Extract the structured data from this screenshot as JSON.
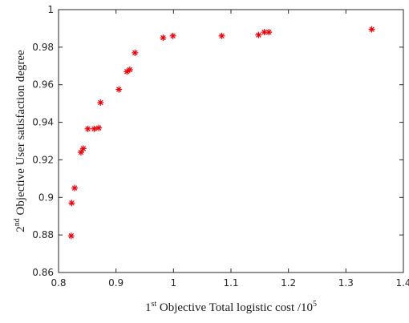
{
  "chart_data": {
    "type": "scatter",
    "marker": "asterisk",
    "marker_color": "#e8000b",
    "xlim": [
      0.8,
      1.4
    ],
    "ylim": [
      0.86,
      1.0
    ],
    "grid": false,
    "legend": false,
    "x_ticks": [
      "0.8",
      "0.9",
      "1",
      "1.1",
      "1.2",
      "1.3",
      "1.4"
    ],
    "y_ticks": [
      "0.86",
      "0.88",
      "0.9",
      "0.92",
      "0.94",
      "0.96",
      "0.98",
      "1"
    ],
    "xlabel": {
      "prefix": "1",
      "prefix_sup": "st",
      "text": " Objective Total logistic cost /10",
      "suffix_sup": "5"
    },
    "ylabel": {
      "prefix": "2",
      "prefix_sup": "nd",
      "text": " Objective User satisfaction degree"
    },
    "series": [
      {
        "points": [
          {
            "x": 0.822,
            "y": 0.8795
          },
          {
            "x": 0.823,
            "y": 0.897
          },
          {
            "x": 0.828,
            "y": 0.905
          },
          {
            "x": 0.839,
            "y": 0.924
          },
          {
            "x": 0.843,
            "y": 0.926
          },
          {
            "x": 0.851,
            "y": 0.9365
          },
          {
            "x": 0.862,
            "y": 0.9365
          },
          {
            "x": 0.87,
            "y": 0.937
          },
          {
            "x": 0.873,
            "y": 0.9505
          },
          {
            "x": 0.905,
            "y": 0.9575
          },
          {
            "x": 0.919,
            "y": 0.967
          },
          {
            "x": 0.924,
            "y": 0.968
          },
          {
            "x": 0.933,
            "y": 0.977
          },
          {
            "x": 0.982,
            "y": 0.985
          },
          {
            "x": 0.999,
            "y": 0.986
          },
          {
            "x": 1.084,
            "y": 0.986
          },
          {
            "x": 1.148,
            "y": 0.9865
          },
          {
            "x": 1.158,
            "y": 0.988
          },
          {
            "x": 1.166,
            "y": 0.988
          },
          {
            "x": 1.345,
            "y": 0.9895
          }
        ]
      }
    ]
  }
}
